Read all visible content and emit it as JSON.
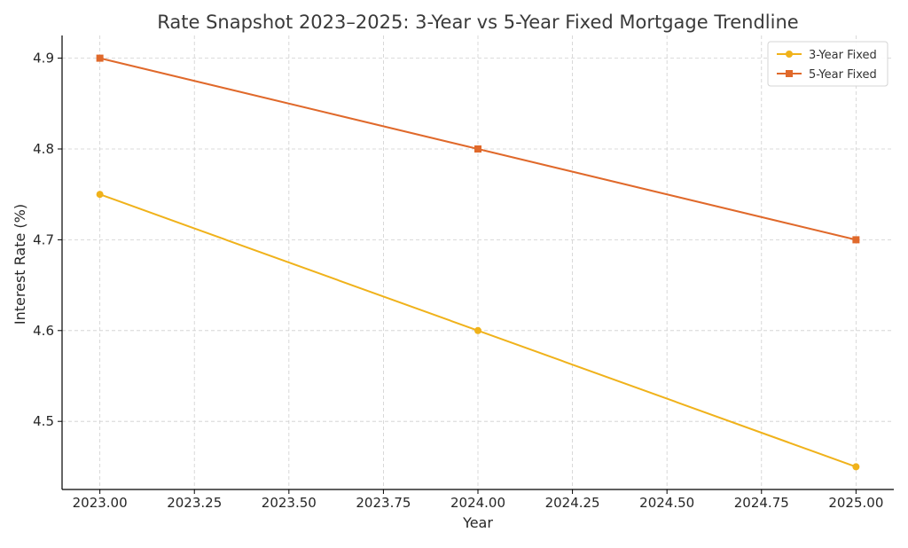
{
  "chart_data": {
    "type": "line",
    "title": "Rate Snapshot 2023–2025: 3-Year vs 5-Year Fixed Mortgage Trendline",
    "xlabel": "Year",
    "ylabel": "Interest Rate (%)",
    "x": [
      2023,
      2024,
      2025
    ],
    "xlim": [
      2022.9,
      2025.1
    ],
    "ylim": [
      4.425,
      4.925
    ],
    "xticks": [
      2023.0,
      2023.25,
      2023.5,
      2023.75,
      2024.0,
      2024.25,
      2024.5,
      2024.75,
      2025.0
    ],
    "xtick_labels": [
      "2023.00",
      "2023.25",
      "2023.50",
      "2023.75",
      "2024.00",
      "2024.25",
      "2024.50",
      "2024.75",
      "2025.00"
    ],
    "yticks": [
      4.5,
      4.6,
      4.7,
      4.8,
      4.9
    ],
    "ytick_labels": [
      "4.5",
      "4.6",
      "4.7",
      "4.8",
      "4.9"
    ],
    "grid": true,
    "legend_position": "top-right",
    "series": [
      {
        "name": "3-Year Fixed",
        "values": [
          4.75,
          4.6,
          4.45
        ],
        "color": "#f0b21b",
        "marker": "circle"
      },
      {
        "name": "5-Year Fixed",
        "values": [
          4.9,
          4.8,
          4.7
        ],
        "color": "#e0692b",
        "marker": "square"
      }
    ]
  }
}
